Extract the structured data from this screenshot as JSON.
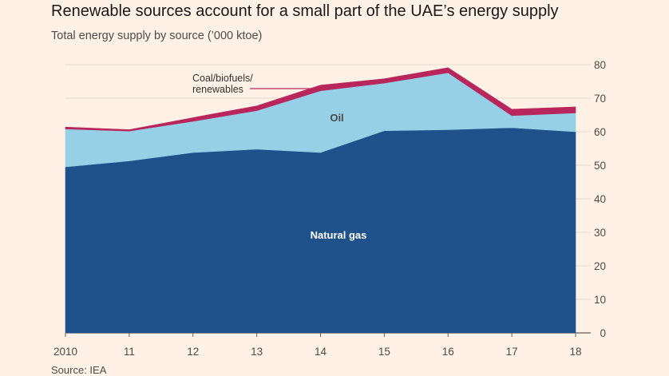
{
  "chart_data": {
    "type": "area",
    "stacked": true,
    "title": "Renewable sources account for a small part of the UAE’s energy supply",
    "subtitle": "Total energy supply by source (’000 ktoe)",
    "source": "Source: IEA",
    "x": [
      2010,
      2011,
      2012,
      2013,
      2014,
      2015,
      2016,
      2017,
      2018
    ],
    "x_tick_labels": [
      "2010",
      "11",
      "12",
      "13",
      "14",
      "15",
      "16",
      "17",
      "18"
    ],
    "ylim": [
      0,
      80
    ],
    "y_ticks": [
      0,
      10,
      20,
      30,
      40,
      50,
      60,
      70,
      80
    ],
    "y_axis_position": "right",
    "grid": true,
    "series": [
      {
        "name": "Natural gas",
        "color": "#1f528a",
        "label_color": "#ffffff",
        "values": [
          49.5,
          51.3,
          53.8,
          54.8,
          53.8,
          60.3,
          60.6,
          61.2,
          60.0
        ]
      },
      {
        "name": "Oil",
        "color": "#96d0e6",
        "label_color": "#4a4a4a",
        "values": [
          11.3,
          8.9,
          9.3,
          11.5,
          18.4,
          14.2,
          17.0,
          3.6,
          5.6
        ]
      },
      {
        "name": "Coal/biofuels/\nrenewables",
        "color": "#b8265c",
        "label_color": "#33302e",
        "values": [
          0.6,
          0.4,
          1.1,
          1.4,
          1.7,
          1.3,
          1.5,
          1.9,
          1.8
        ]
      }
    ],
    "series_labels": {
      "natural_gas": "Natural gas",
      "oil": "Oil",
      "coal_line1": "Coal/biofuels/",
      "coal_line2": "renewables"
    }
  }
}
